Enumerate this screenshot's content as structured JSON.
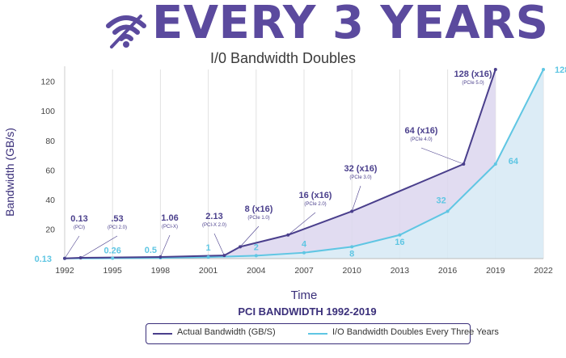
{
  "header": {
    "title": "EVERY 3 YEARS",
    "subtitle": "I/0 Bandwidth Doubles",
    "icon": "wifi-icon"
  },
  "colors": {
    "brand": "#5b4a9e",
    "actual": "#4a3f8c",
    "doubling": "#5fc6e3",
    "area_actual": "#dcd6ee",
    "area_doubling": "#d6e9f5"
  },
  "chart_data": {
    "type": "line",
    "title": "PCI BANDWIDTH 1992-2019",
    "xlabel": "Time",
    "ylabel": "Bandwidth (GB/s)",
    "xlim": [
      1992,
      2022
    ],
    "ylim": [
      0,
      128
    ],
    "xticks": [
      "1992",
      "1995",
      "1998",
      "2001",
      "2004",
      "2007",
      "2010",
      "2013",
      "2016",
      "2019",
      "2022"
    ],
    "yticks": [
      "20",
      "40",
      "60",
      "80",
      "100",
      "120"
    ],
    "grid": "vertical",
    "series": [
      {
        "name": "Actual Bandwidth (GB/S)",
        "color": "#4a3f8c",
        "x": [
          1992,
          1993,
          1998,
          2002,
          2003,
          2006,
          2010,
          2017,
          2019
        ],
        "y": [
          0.13,
          0.53,
          1.06,
          2.13,
          8,
          16,
          32,
          64,
          128
        ]
      },
      {
        "name": "I/O Bandwidth Doubles Every Three Years",
        "color": "#5fc6e3",
        "x": [
          1992,
          1995,
          1998,
          2001,
          2004,
          2007,
          2010,
          2013,
          2016,
          2019,
          2022
        ],
        "y": [
          0.13,
          0.26,
          0.5,
          1,
          2,
          4,
          8,
          16,
          32,
          64,
          128
        ]
      }
    ],
    "annotations_actual": [
      {
        "x": 1992,
        "y": 0.13,
        "value": "0.13",
        "sub": "(PCI)"
      },
      {
        "x": 1993,
        "y": 0.53,
        "value": ".53",
        "sub": "(PCI 2.0)"
      },
      {
        "x": 1998,
        "y": 1.06,
        "value": "1.06",
        "sub": "(PCI-X)"
      },
      {
        "x": 2002,
        "y": 2.13,
        "value": "2.13",
        "sub": "(PCI-X 2.0)"
      },
      {
        "x": 2003,
        "y": 8,
        "value": "8 (x16)",
        "sub": "(PCIe 1.0)"
      },
      {
        "x": 2006,
        "y": 16,
        "value": "16 (x16)",
        "sub": "(PCIe 2.0)"
      },
      {
        "x": 2010,
        "y": 32,
        "value": "32 (x16)",
        "sub": "(PCIe 3.0)"
      },
      {
        "x": 2017,
        "y": 64,
        "value": "64 (x16)",
        "sub": "(PCIe 4.0)"
      },
      {
        "x": 2019,
        "y": 128,
        "value": "128 (x16)",
        "sub": "(PCIe 5.0)"
      }
    ],
    "annotations_doubling": [
      "0.13",
      "0.26",
      "0.5",
      "1",
      "2",
      "4",
      "8",
      "16",
      "32",
      "64",
      "128"
    ],
    "legend_position": "bottom"
  }
}
